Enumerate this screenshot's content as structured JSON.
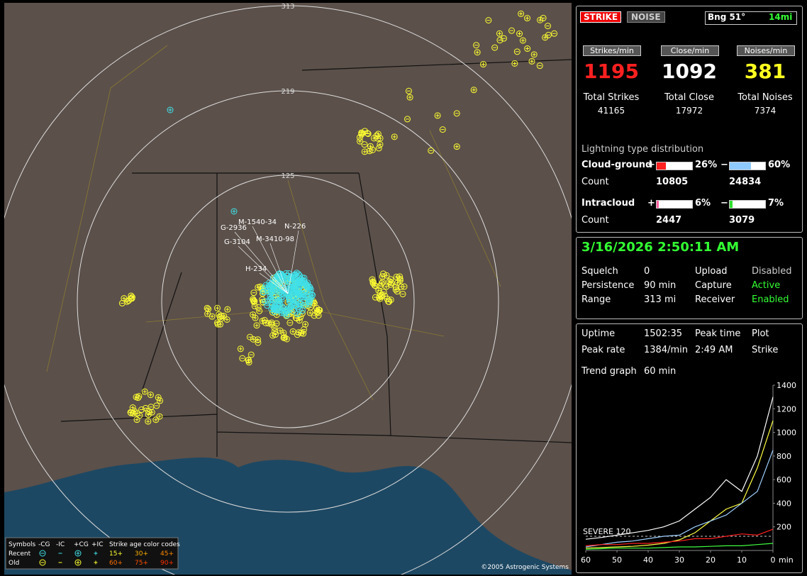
{
  "header": {
    "strike_button": "STRIKE",
    "noise_button": "NOISE",
    "bearing": "Bng 51°",
    "distance": "14mi"
  },
  "rates": [
    {
      "label": "Strikes/min",
      "value": 1195,
      "total_label": "Total Strikes",
      "total": 41165
    },
    {
      "label": "Close/min",
      "value": 1092,
      "total_label": "Total Close",
      "total": 17972
    },
    {
      "label": "Noises/min",
      "value": 381,
      "total_label": "Total Noises",
      "total": 7374
    }
  ],
  "distribution": {
    "title": "Lightning type distribution",
    "count_label": "Count",
    "rows": [
      {
        "name": "Cloud-ground",
        "pos_sign": "+",
        "neg_sign": "−",
        "pos": {
          "value": 26,
          "label": "26%"
        },
        "neg": {
          "value": 60,
          "label": "60%"
        },
        "pos_count": 10805,
        "neg_count": 24834
      },
      {
        "name": "Intracloud",
        "pos_sign": "+",
        "neg_sign": "−",
        "pos": {
          "value": 6,
          "label": "6%"
        },
        "neg": {
          "value": 7,
          "label": "7%"
        },
        "pos_count": 2447,
        "neg_count": 3079
      }
    ]
  },
  "clock": "3/16/2026 2:50:11 AM",
  "settings": [
    [
      "Squelch",
      "0",
      "Upload",
      "Disabled"
    ],
    [
      "Persistence",
      "90 min",
      "Capture",
      "Active"
    ],
    [
      "Range",
      "313 mi",
      "Receiver",
      "Enabled"
    ]
  ],
  "stats": [
    [
      "Uptime",
      "1502:35",
      "Peak time",
      "Plot"
    ],
    [
      "Peak rate",
      "1384/min",
      "2:49 AM",
      "Strike"
    ]
  ],
  "trend": {
    "type": "line",
    "label": "Trend graph",
    "window": "60 min",
    "threshold": {
      "label": "SEVERE 120",
      "value": 120
    },
    "x": [
      60,
      55,
      50,
      45,
      40,
      35,
      30,
      25,
      20,
      15,
      10,
      5,
      0
    ],
    "xlim": [
      60,
      0
    ],
    "xticks": [
      60,
      50,
      40,
      30,
      20,
      10,
      0
    ],
    "x_unit": "min",
    "ylim": [
      0,
      1400
    ],
    "yticks": [
      200,
      400,
      600,
      800,
      1000,
      1200,
      1400
    ],
    "series": [
      {
        "color": "#ffffff",
        "values": [
          95,
          110,
          130,
          150,
          170,
          200,
          250,
          350,
          450,
          600,
          500,
          800,
          1300
        ]
      },
      {
        "color": "#ffff40",
        "values": [
          20,
          25,
          30,
          35,
          45,
          60,
          90,
          150,
          250,
          350,
          400,
          700,
          1100
        ]
      },
      {
        "color": "#9fd0ff",
        "values": [
          30,
          50,
          70,
          80,
          100,
          120,
          130,
          200,
          250,
          300,
          400,
          500,
          850
        ]
      },
      {
        "color": "#ff2020",
        "values": [
          40,
          50,
          50,
          60,
          60,
          70,
          80,
          100,
          100,
          120,
          140,
          130,
          180
        ]
      },
      {
        "color": "#40ff40",
        "values": [
          10,
          15,
          20,
          20,
          20,
          25,
          30,
          30,
          35,
          40,
          40,
          50,
          60
        ]
      }
    ]
  },
  "map": {
    "ring_labels": [
      "313",
      "219",
      "125"
    ],
    "strike_labels": [
      "M-1540-34",
      "G-2936",
      "N-226",
      "G-3104",
      "M-3410-98",
      "H-234"
    ],
    "legend": {
      "symbols": "Symbols",
      "columns": [
        "-CG",
        "-IC",
        "+CG",
        "+IC"
      ],
      "rows": [
        "Recent",
        "Old"
      ],
      "age_title": "Strike age color codes",
      "ages": [
        [
          "15+",
          "30+",
          "45+"
        ],
        [
          "60+",
          "75+",
          "90+"
        ]
      ]
    },
    "copyright": "©2005 Astrogenic Systems"
  }
}
